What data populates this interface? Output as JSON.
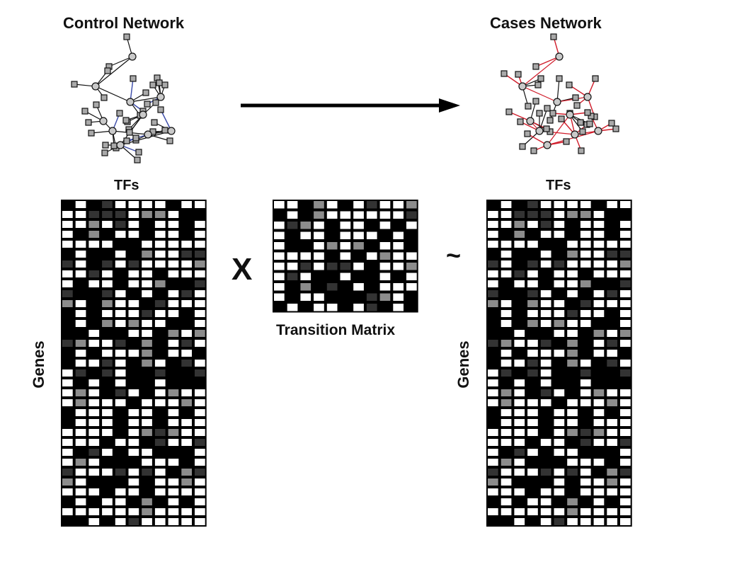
{
  "control_network": {
    "title": "Control Network",
    "edge_color": "#3a4aa8"
  },
  "cases_network": {
    "title": "Cases Network",
    "edge_color": "#d01c2a"
  },
  "tfs_label": "TFs",
  "genes_label": "Genes",
  "multiply_symbol": "X",
  "approx_symbol": "~",
  "transition_matrix": {
    "label": "Transition Matrix"
  },
  "palette": {
    "white": "#ffffff",
    "black": "#000000",
    "dark_gray": "#333333",
    "gray": "#8c8c8c",
    "node_fill": "#c9c9c9"
  }
}
